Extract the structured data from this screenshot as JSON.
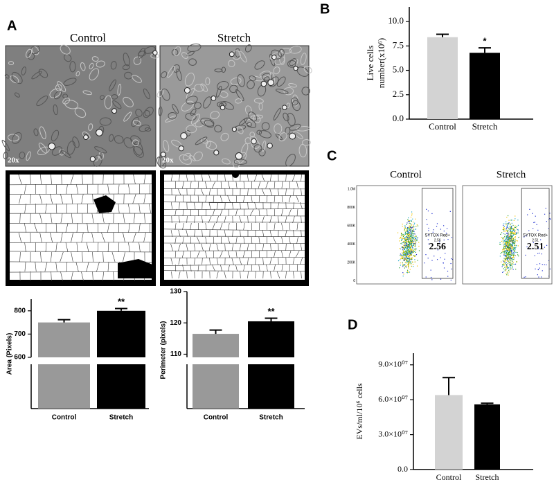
{
  "panel_labels": {
    "a": "A",
    "b": "B",
    "c": "C",
    "d": "D"
  },
  "micrographs": [
    {
      "title": "Control",
      "magnification": "20x"
    },
    {
      "title": "Stretch",
      "magnification": "20x"
    }
  ],
  "flow_cytometry": {
    "yticks": [
      "1.0M",
      "800K",
      "600K",
      "400K",
      "200K",
      "0"
    ],
    "plots": [
      {
        "title": "Control",
        "gate": "SYTOX Red+",
        "percent": 2.56
      },
      {
        "title": "Stretch",
        "gate": "SYTOX Red+",
        "percent": 2.51
      }
    ]
  },
  "chart_data": [
    {
      "type": "bar",
      "ylabel": "Area (Pixels)",
      "categories": [
        "Control",
        "Stretch"
      ],
      "values": [
        750,
        800
      ],
      "errors": [
        12,
        10
      ],
      "colors": [
        "#999999",
        "#000000"
      ],
      "significance": [
        null,
        "**"
      ],
      "ylim": [
        0,
        850
      ],
      "axis_break": [
        200,
        600
      ],
      "yticks": [
        600,
        700,
        800
      ],
      "grid": false
    },
    {
      "type": "bar",
      "ylabel": "Perimeter (pixels)",
      "categories": [
        "Control",
        "Stretch"
      ],
      "values": [
        116.5,
        120.5
      ],
      "errors": [
        1.2,
        1.0
      ],
      "colors": [
        "#999999",
        "#000000"
      ],
      "significance": [
        null,
        "**"
      ],
      "ylim": [
        0,
        130
      ],
      "axis_break": [
        100,
        109
      ],
      "yticks": [
        110,
        120,
        130
      ],
      "grid": false
    },
    {
      "type": "bar",
      "ylabel": [
        "Live cells",
        "number(x10⁶)"
      ],
      "categories": [
        "Control",
        "Stretch"
      ],
      "values": [
        8.4,
        6.8
      ],
      "errors": [
        0.3,
        0.5
      ],
      "colors": [
        "#d3d3d3",
        "#000000"
      ],
      "significance": [
        null,
        "*"
      ],
      "ylim": [
        0,
        11.5
      ],
      "yticks": [
        {
          "value": 0,
          "label": "0.0"
        },
        {
          "value": 2.5,
          "label": "2.5"
        },
        {
          "value": 5,
          "label": "5.0"
        },
        {
          "value": 7.5,
          "label": "7.5"
        },
        {
          "value": 10,
          "label": "10.0"
        }
      ],
      "grid": false
    },
    {
      "type": "bar",
      "ylabel": "EVs/ml/10⁶ cells",
      "categories": [
        "Control",
        "Stretch"
      ],
      "values": [
        64000000,
        56000000
      ],
      "errors": [
        15000000,
        1000000
      ],
      "colors": [
        "#d3d3d3",
        "#000000"
      ],
      "ylim": [
        0,
        100000000
      ],
      "yticks": [
        {
          "value": 0,
          "label": "0.0"
        },
        {
          "value": 30000000,
          "label": "3.0×10⁰⁷"
        },
        {
          "value": 60000000,
          "label": "6.0×10⁰⁷"
        },
        {
          "value": 90000000,
          "label": "9.0×10⁰⁷"
        }
      ],
      "grid": false
    }
  ]
}
